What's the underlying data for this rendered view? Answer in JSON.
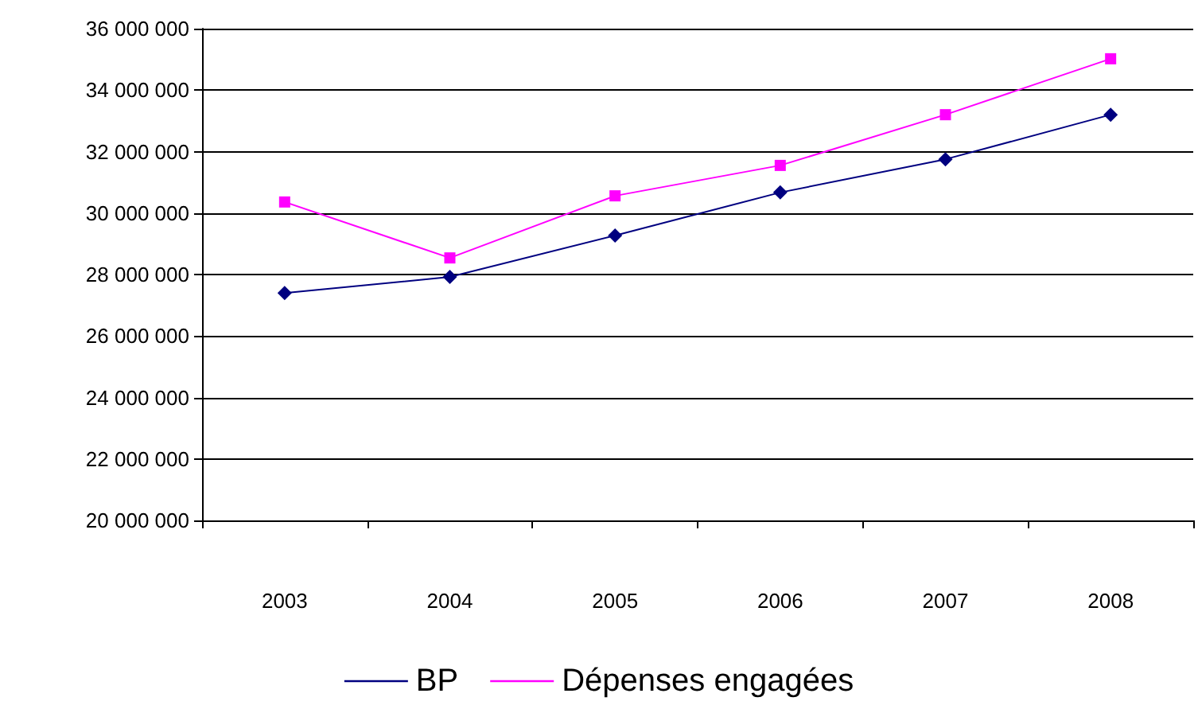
{
  "chart_data": {
    "type": "line",
    "categories": [
      "2003",
      "2004",
      "2005",
      "2006",
      "2007",
      "2008"
    ],
    "series": [
      {
        "name": "BP",
        "color": "#000080",
        "marker": "diamond",
        "values": [
          27400000,
          27920000,
          29270000,
          30670000,
          31750000,
          33200000
        ]
      },
      {
        "name": "Dépenses engagées",
        "color": "#ff00ff",
        "marker": "square",
        "values": [
          30360000,
          28540000,
          30560000,
          31550000,
          33200000,
          35020000
        ]
      }
    ],
    "ylim": [
      20000000,
      36000000
    ],
    "yticks": [
      {
        "value": 20000000,
        "label": "20 000 000"
      },
      {
        "value": 22000000,
        "label": "22 000 000"
      },
      {
        "value": 24000000,
        "label": "24 000 000"
      },
      {
        "value": 26000000,
        "label": "26 000 000"
      },
      {
        "value": 28000000,
        "label": "28 000 000"
      },
      {
        "value": 30000000,
        "label": "30 000 000"
      },
      {
        "value": 32000000,
        "label": "32 000 000"
      },
      {
        "value": 34000000,
        "label": "34 000 000"
      },
      {
        "value": 36000000,
        "label": "36 000 000"
      }
    ],
    "grid": "y",
    "legend": "bottom",
    "line_style": "solid"
  }
}
